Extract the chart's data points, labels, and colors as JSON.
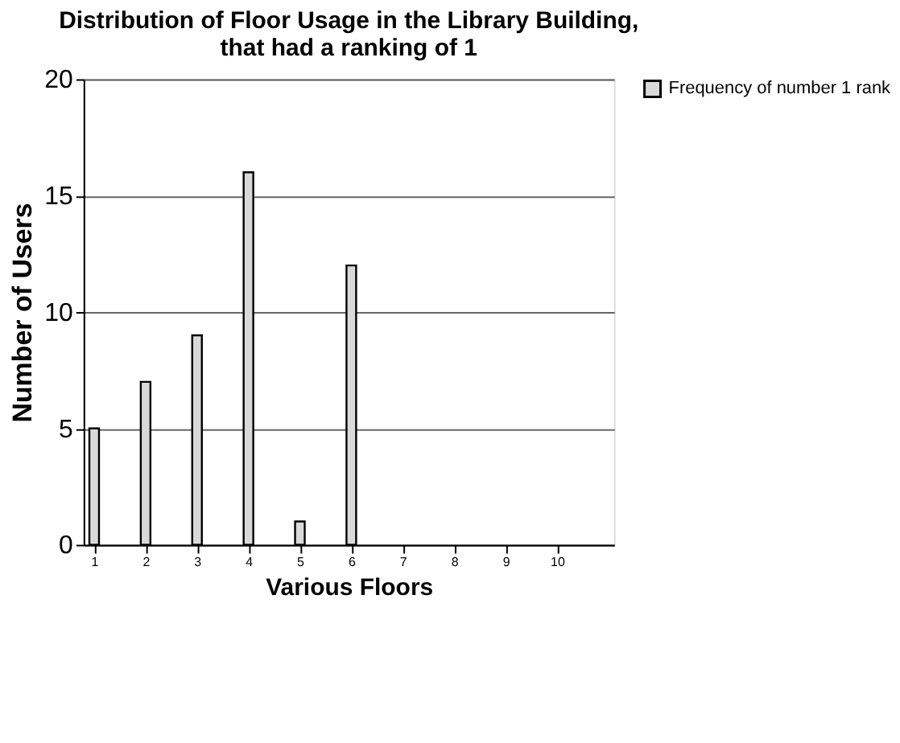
{
  "chart_data": {
    "type": "bar",
    "title": [
      "Distribution of Floor Usage in the Library Building,",
      "that had a ranking of 1"
    ],
    "xlabel": "Various Floors",
    "ylabel": "Number of Users",
    "categories": [
      "1",
      "2",
      "3",
      "4",
      "5",
      "6",
      "7",
      "8",
      "9",
      "10"
    ],
    "series": [
      {
        "name": "Frequency of number 1 rank",
        "color": "#d9d9d9",
        "values": [
          5,
          7,
          9,
          16,
          1,
          12,
          0,
          0,
          0,
          0
        ]
      }
    ],
    "ylim": [
      0,
      20
    ],
    "yticks": [
      0,
      5,
      10,
      15,
      20
    ],
    "grid": "y",
    "legend": "right"
  }
}
